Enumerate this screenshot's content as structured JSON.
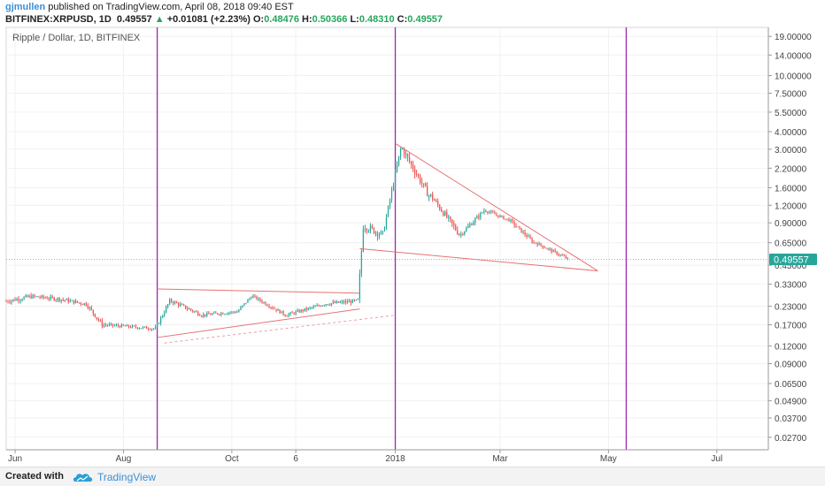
{
  "header": {
    "user": "gjmullen",
    "published": "published on TradingView.com, April 08, 2018 09:40 EST",
    "symbol": "BITFINEX:XRPUSD, 1D",
    "last": "0.49557",
    "change": "+0.01081 (+2.23%)",
    "o_label": "O:",
    "o_value": "0.48476",
    "h_label": "H:",
    "h_value": "0.50366",
    "l_label": "L:",
    "l_value": "0.48310",
    "c_label": "C:",
    "c_value": "0.49557"
  },
  "footer": {
    "created_with": "Created with",
    "brand": "TradingView"
  },
  "colors": {
    "up": "#26a69a",
    "down": "#ef5350",
    "vline": "#9c27b0",
    "trend": "#e57373",
    "price_tag": "#26a69a"
  },
  "chart_data": {
    "type": "candlestick",
    "title": "Ripple / Dollar, 1D, BITFINEX",
    "y_scale": "log",
    "ylim": [
      0.022,
      22
    ],
    "y_ticks": [
      "19.00000",
      "14.00000",
      "10.00000",
      "7.50000",
      "5.50000",
      "4.00000",
      "3.00000",
      "2.20000",
      "1.60000",
      "1.20000",
      "0.90000",
      "0.65000",
      "0.45000",
      "0.33000",
      "0.23000",
      "0.17000",
      "0.12000",
      "0.09000",
      "0.06500",
      "0.04900",
      "0.03700",
      "0.02700"
    ],
    "x_ticks": [
      {
        "label": "Jun",
        "date": "2017-06-01"
      },
      {
        "label": "Aug",
        "date": "2017-08-01"
      },
      {
        "label": "Oct",
        "date": "2017-10-01"
      },
      {
        "label": "6",
        "date": "2017-11-06"
      },
      {
        "label": "2018",
        "date": "2018-01-01"
      },
      {
        "label": "Mar",
        "date": "2018-03-01"
      },
      {
        "label": "May",
        "date": "2018-05-01"
      },
      {
        "label": "Jul",
        "date": "2018-07-01"
      }
    ],
    "xlim": [
      "2017-05-27",
      "2018-07-30"
    ],
    "last_price": "0.49557",
    "vertical_lines": [
      "2017-08-20",
      "2018-01-01",
      "2018-05-11"
    ],
    "trendlines": [
      {
        "from": [
          "2017-08-20",
          0.305
        ],
        "to": [
          "2017-12-12",
          0.285
        ],
        "style": "solid"
      },
      {
        "from": [
          "2017-08-20",
          0.138
        ],
        "to": [
          "2017-12-12",
          0.22
        ],
        "style": "solid"
      },
      {
        "from": [
          "2017-08-24",
          0.126
        ],
        "to": [
          "2017-12-31",
          0.198
        ],
        "style": "dashed"
      },
      {
        "from": [
          "2017-12-12",
          0.59
        ],
        "to": [
          "2018-04-25",
          0.41
        ],
        "style": "solid"
      },
      {
        "from": [
          "2018-01-01",
          3.3
        ],
        "to": [
          "2018-04-25",
          0.41
        ],
        "style": "solid"
      }
    ],
    "segments": [
      {
        "start": "2017-05-27",
        "end": "2017-06-10",
        "p0": 0.25,
        "p1": 0.27,
        "vol": 0.07
      },
      {
        "start": "2017-06-11",
        "end": "2017-06-24",
        "p0": 0.27,
        "p1": 0.26,
        "vol": 0.06
      },
      {
        "start": "2017-06-25",
        "end": "2017-07-10",
        "p0": 0.26,
        "p1": 0.24,
        "vol": 0.06
      },
      {
        "start": "2017-07-11",
        "end": "2017-07-20",
        "p0": 0.24,
        "p1": 0.17,
        "vol": 0.07
      },
      {
        "start": "2017-07-21",
        "end": "2017-08-18",
        "p0": 0.17,
        "p1": 0.16,
        "vol": 0.05
      },
      {
        "start": "2017-08-19",
        "end": "2017-08-27",
        "p0": 0.16,
        "p1": 0.25,
        "vol": 0.06
      },
      {
        "start": "2017-08-28",
        "end": "2017-09-14",
        "p0": 0.25,
        "p1": 0.2,
        "vol": 0.06
      },
      {
        "start": "2017-09-15",
        "end": "2017-10-03",
        "p0": 0.2,
        "p1": 0.21,
        "vol": 0.05
      },
      {
        "start": "2017-10-04",
        "end": "2017-10-12",
        "p0": 0.21,
        "p1": 0.27,
        "vol": 0.05
      },
      {
        "start": "2017-10-13",
        "end": "2017-10-31",
        "p0": 0.27,
        "p1": 0.2,
        "vol": 0.05
      },
      {
        "start": "2017-11-01",
        "end": "2017-11-23",
        "p0": 0.2,
        "p1": 0.24,
        "vol": 0.05
      },
      {
        "start": "2017-11-24",
        "end": "2017-12-10",
        "p0": 0.24,
        "p1": 0.25,
        "vol": 0.06
      },
      {
        "start": "2017-12-11",
        "end": "2017-12-14",
        "p0": 0.25,
        "p1": 0.85,
        "vol": 0.12
      },
      {
        "start": "2017-12-15",
        "end": "2017-12-24",
        "p0": 0.85,
        "p1": 0.75,
        "vol": 0.12
      },
      {
        "start": "2017-12-25",
        "end": "2018-01-04",
        "p0": 0.75,
        "p1": 3.0,
        "vol": 0.1
      },
      {
        "start": "2018-01-05",
        "end": "2018-01-20",
        "p0": 3.0,
        "p1": 1.4,
        "vol": 0.12
      },
      {
        "start": "2018-01-21",
        "end": "2018-02-06",
        "p0": 1.4,
        "p1": 0.75,
        "vol": 0.1
      },
      {
        "start": "2018-02-07",
        "end": "2018-02-20",
        "p0": 0.75,
        "p1": 1.1,
        "vol": 0.07
      },
      {
        "start": "2018-02-21",
        "end": "2018-03-05",
        "p0": 1.1,
        "p1": 0.95,
        "vol": 0.05
      },
      {
        "start": "2018-03-06",
        "end": "2018-03-20",
        "p0": 0.95,
        "p1": 0.65,
        "vol": 0.06
      },
      {
        "start": "2018-03-21",
        "end": "2018-04-08",
        "p0": 0.65,
        "p1": 0.5,
        "vol": 0.05
      }
    ]
  }
}
